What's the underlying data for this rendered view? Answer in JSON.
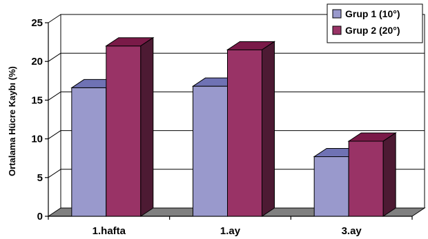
{
  "chart_data": {
    "type": "bar",
    "categories": [
      "1.hafta",
      "1.ay",
      "3.ay"
    ],
    "series": [
      {
        "name": "Grup 1 (10°)",
        "values": [
          16.6,
          16.8,
          7.7
        ],
        "color": "#9999cc",
        "top_color": "#6f72b4",
        "side_color": "#5a5d96"
      },
      {
        "name": "Grup 2 (20°)",
        "values": [
          22.0,
          21.5,
          9.7
        ],
        "color": "#993366",
        "top_color": "#7a1a48",
        "side_color": "#4d1a33"
      }
    ],
    "ylabel": "Ortalama Hücre Kaybı (%)",
    "xlabel": "",
    "ylim": [
      0,
      25
    ],
    "yticks": [
      0,
      5,
      10,
      15,
      20,
      25
    ],
    "grid": true,
    "legend": "top-right",
    "three_d": true
  }
}
